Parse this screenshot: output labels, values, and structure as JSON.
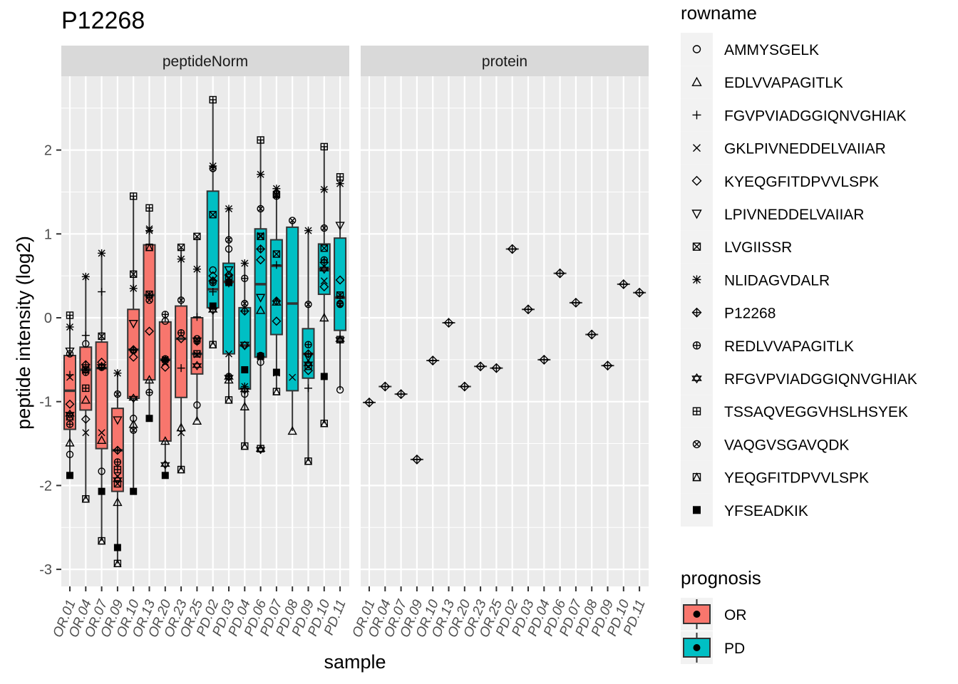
{
  "chart_data": {
    "type": "boxplot",
    "title": "P12268",
    "xlabel": "sample",
    "ylabel": "peptide intensity (log2)",
    "ylim": [
      -3.2,
      2.95
    ],
    "yticks": [
      2,
      1,
      0,
      -1,
      -2,
      -3
    ],
    "ytick_labels": [
      "2",
      "1",
      "0",
      "-1",
      "-2",
      "-3"
    ],
    "facets": [
      "peptideNorm",
      "protein"
    ],
    "samples": [
      "OR.01",
      "OR.04",
      "OR.07",
      "OR.09",
      "OR.10",
      "OR.13",
      "OR.20",
      "OR.23",
      "OR.25",
      "PD.02",
      "PD.03",
      "PD.04",
      "PD.06",
      "PD.07",
      "PD.08",
      "PD.09",
      "PD.10",
      "PD.11"
    ],
    "prognosis": [
      "OR",
      "OR",
      "OR",
      "OR",
      "OR",
      "OR",
      "OR",
      "OR",
      "OR",
      "PD",
      "PD",
      "PD",
      "PD",
      "PD",
      "PD",
      "PD",
      "PD",
      "PD"
    ],
    "box_stats": [
      {
        "sample": "OR.01",
        "lower": -1.88,
        "q1": -1.33,
        "median": -0.87,
        "q3": -0.45,
        "upper": 0.03
      },
      {
        "sample": "OR.04",
        "lower": -2.16,
        "q1": -1.1,
        "median": -0.62,
        "q3": -0.35,
        "upper": 0.49
      },
      {
        "sample": "OR.07",
        "lower": -2.66,
        "q1": -1.56,
        "median": -0.6,
        "q3": -0.29,
        "upper": 0.77
      },
      {
        "sample": "OR.09",
        "lower": -2.93,
        "q1": -2.07,
        "median": -1.58,
        "q3": -1.08,
        "upper": -0.66
      },
      {
        "sample": "OR.10",
        "lower": -2.07,
        "q1": -0.96,
        "median": -0.38,
        "q3": 0.1,
        "upper": 1.45
      },
      {
        "sample": "OR.13",
        "lower": -1.2,
        "q1": -0.74,
        "median": 0.27,
        "q3": 0.87,
        "upper": 1.31
      },
      {
        "sample": "OR.20",
        "lower": -1.88,
        "q1": -1.47,
        "median": -0.5,
        "q3": -0.05,
        "upper": 0.04
      },
      {
        "sample": "OR.23",
        "lower": -1.81,
        "q1": -0.95,
        "median": -0.25,
        "q3": 0.14,
        "upper": 0.84
      },
      {
        "sample": "OR.25",
        "lower": -1.23,
        "q1": -0.67,
        "median": -0.43,
        "q3": 0.0,
        "upper": 0.97
      },
      {
        "sample": "PD.02",
        "lower": -0.32,
        "q1": 0.12,
        "median": 0.34,
        "q3": 1.51,
        "upper": 2.6
      },
      {
        "sample": "PD.03",
        "lower": -0.97,
        "q1": -0.43,
        "median": 0.43,
        "q3": 0.65,
        "upper": 1.3
      },
      {
        "sample": "PD.04",
        "lower": -1.53,
        "q1": -0.85,
        "median": -0.33,
        "q3": 0.12,
        "upper": 0.65
      },
      {
        "sample": "PD.06",
        "lower": -1.57,
        "q1": -0.47,
        "median": 0.4,
        "q3": 1.06,
        "upper": 2.12
      },
      {
        "sample": "PD.07",
        "lower": -0.87,
        "q1": -0.2,
        "median": 0.62,
        "q3": 0.93,
        "upper": 1.54
      },
      {
        "sample": "PD.08",
        "lower": -1.35,
        "q1": -0.87,
        "median": 0.17,
        "q3": 1.08,
        "upper": 1.16
      },
      {
        "sample": "PD.09",
        "lower": -1.71,
        "q1": -0.72,
        "median": -0.43,
        "q3": -0.13,
        "upper": 1.04
      },
      {
        "sample": "PD.10",
        "lower": -1.26,
        "q1": 0.28,
        "median": 0.58,
        "q3": 0.88,
        "upper": 2.04
      },
      {
        "sample": "PD.11",
        "lower": -0.86,
        "q1": -0.15,
        "median": 0.24,
        "q3": 0.95,
        "upper": 1.68
      }
    ],
    "peptide_points": [
      {
        "sample": "OR.01",
        "points": [
          [
            0,
            -1.63
          ],
          [
            1,
            -1.49
          ],
          [
            3,
            -0.71
          ],
          [
            4,
            -1.03
          ],
          [
            7,
            -0.11
          ],
          [
            9,
            -1.27
          ],
          [
            10,
            -1.15
          ],
          [
            11,
            0.03
          ],
          [
            12,
            -0.43
          ],
          [
            13,
            -1.18
          ],
          [
            14,
            -1.88
          ],
          [
            2,
            -0.68
          ],
          [
            5,
            -0.4
          ]
        ]
      },
      {
        "sample": "OR.04",
        "points": [
          [
            0,
            -0.31
          ],
          [
            1,
            -0.98
          ],
          [
            2,
            -0.21
          ],
          [
            3,
            -1.37
          ],
          [
            4,
            -1.21
          ],
          [
            6,
            -0.62
          ],
          [
            7,
            0.49
          ],
          [
            8,
            -0.56
          ],
          [
            9,
            -0.65
          ],
          [
            11,
            -0.84
          ],
          [
            13,
            -2.16
          ]
        ]
      },
      {
        "sample": "OR.07",
        "points": [
          [
            0,
            -1.83
          ],
          [
            1,
            -1.46
          ],
          [
            2,
            0.31
          ],
          [
            3,
            -1.37
          ],
          [
            4,
            -0.53
          ],
          [
            6,
            -0.22
          ],
          [
            7,
            0.77
          ],
          [
            9,
            -0.59
          ],
          [
            10,
            -0.58
          ],
          [
            13,
            -2.66
          ],
          [
            14,
            -2.07
          ]
        ]
      },
      {
        "sample": "OR.09",
        "points": [
          [
            1,
            -2.2
          ],
          [
            3,
            -1.89
          ],
          [
            5,
            -1.22
          ],
          [
            6,
            -1.98
          ],
          [
            7,
            -0.66
          ],
          [
            8,
            -1.58
          ],
          [
            9,
            -1.72
          ],
          [
            10,
            -1.93
          ],
          [
            11,
            -1.81
          ],
          [
            12,
            -0.91
          ],
          [
            13,
            -2.93
          ],
          [
            14,
            -2.74
          ]
        ]
      },
      {
        "sample": "OR.10",
        "points": [
          [
            0,
            -1.2
          ],
          [
            1,
            -1.27
          ],
          [
            4,
            -0.47
          ],
          [
            5,
            -0.07
          ],
          [
            6,
            0.52
          ],
          [
            7,
            0.35
          ],
          [
            8,
            -0.38
          ],
          [
            9,
            -0.39
          ],
          [
            10,
            -0.96
          ],
          [
            11,
            1.45
          ],
          [
            12,
            -1.34
          ],
          [
            14,
            -2.07
          ]
        ]
      },
      {
        "sample": "OR.13",
        "points": [
          [
            1,
            -0.74
          ],
          [
            2,
            0.27
          ],
          [
            3,
            1.06
          ],
          [
            4,
            -0.16
          ],
          [
            6,
            0.28
          ],
          [
            7,
            1.04
          ],
          [
            9,
            -0.89
          ],
          [
            12,
            0.21
          ],
          [
            13,
            0.84
          ],
          [
            11,
            1.31
          ],
          [
            14,
            -1.2
          ]
        ]
      },
      {
        "sample": "OR.20",
        "points": [
          [
            0,
            -0.04
          ],
          [
            1,
            -1.47
          ],
          [
            3,
            -0.53
          ],
          [
            4,
            -0.59
          ],
          [
            7,
            -0.5
          ],
          [
            8,
            -0.51
          ],
          [
            9,
            0.04
          ],
          [
            10,
            -1.75
          ],
          [
            12,
            -0.49
          ],
          [
            14,
            -1.88
          ]
        ]
      },
      {
        "sample": "OR.23",
        "points": [
          [
            1,
            -1.31
          ],
          [
            2,
            -0.6
          ],
          [
            3,
            -1.37
          ],
          [
            4,
            -0.25
          ],
          [
            6,
            0.84
          ],
          [
            7,
            0.7
          ],
          [
            9,
            -0.18
          ],
          [
            12,
            0.21
          ],
          [
            13,
            -1.81
          ]
        ]
      },
      {
        "sample": "OR.25",
        "points": [
          [
            0,
            -1.04
          ],
          [
            1,
            -1.23
          ],
          [
            2,
            0.01
          ],
          [
            3,
            -0.44
          ],
          [
            5,
            -0.28
          ],
          [
            6,
            0.97
          ],
          [
            7,
            0.58
          ],
          [
            9,
            -0.28
          ],
          [
            10,
            -0.57
          ],
          [
            12,
            -0.25
          ],
          [
            11,
            -0.43
          ]
        ]
      },
      {
        "sample": "PD.02",
        "points": [
          [
            0,
            0.57
          ],
          [
            3,
            0.12
          ],
          [
            4,
            0.5
          ],
          [
            6,
            1.23
          ],
          [
            7,
            1.81
          ],
          [
            8,
            0.44
          ],
          [
            9,
            0.42
          ],
          [
            10,
            0.09
          ],
          [
            11,
            2.6
          ],
          [
            12,
            1.78
          ],
          [
            13,
            -0.32
          ],
          [
            14,
            0.14
          ],
          [
            2,
            0.31
          ]
        ]
      },
      {
        "sample": "PD.03",
        "points": [
          [
            0,
            0.82
          ],
          [
            1,
            -0.74
          ],
          [
            2,
            0.41
          ],
          [
            3,
            -0.43
          ],
          [
            4,
            0.51
          ],
          [
            5,
            0.57
          ],
          [
            6,
            0.48
          ],
          [
            7,
            1.3
          ],
          [
            9,
            -0.7
          ],
          [
            10,
            -0.71
          ],
          [
            12,
            0.93
          ],
          [
            13,
            -0.98
          ],
          [
            14,
            0.42
          ]
        ]
      },
      {
        "sample": "PD.04",
        "points": [
          [
            0,
            -0.91
          ],
          [
            1,
            -1.06
          ],
          [
            2,
            -0.82
          ],
          [
            3,
            -0.82
          ],
          [
            4,
            -0.33
          ],
          [
            5,
            -0.33
          ],
          [
            7,
            0.65
          ],
          [
            8,
            0.08
          ],
          [
            9,
            0.47
          ],
          [
            10,
            -0.86
          ],
          [
            12,
            0.17
          ],
          [
            13,
            -1.53
          ],
          [
            14,
            -0.62
          ]
        ]
      },
      {
        "sample": "PD.06",
        "points": [
          [
            0,
            -0.53
          ],
          [
            1,
            0.09
          ],
          [
            2,
            -0.46
          ],
          [
            3,
            0.98
          ],
          [
            4,
            0.69
          ],
          [
            5,
            0.24
          ],
          [
            6,
            0.97
          ],
          [
            7,
            1.71
          ],
          [
            8,
            0.82
          ],
          [
            9,
            -0.45
          ],
          [
            10,
            -1.57
          ],
          [
            11,
            2.12
          ],
          [
            12,
            1.3
          ],
          [
            13,
            -1.56
          ],
          [
            14,
            -0.46
          ]
        ]
      },
      {
        "sample": "PD.07",
        "points": [
          [
            0,
            1.48
          ],
          [
            1,
            0.19
          ],
          [
            2,
            0.63
          ],
          [
            3,
            -0.66
          ],
          [
            4,
            -0.04
          ],
          [
            6,
            0.76
          ],
          [
            7,
            1.54
          ],
          [
            8,
            0.2
          ],
          [
            9,
            1.45
          ],
          [
            11,
            1.47
          ],
          [
            12,
            1.47
          ],
          [
            13,
            -0.88
          ],
          [
            14,
            -0.65
          ]
        ]
      },
      {
        "sample": "PD.08",
        "points": [
          [
            1,
            -1.35
          ],
          [
            3,
            -0.71
          ],
          [
            12,
            1.16
          ]
        ]
      },
      {
        "sample": "PD.09",
        "points": [
          [
            2,
            -0.84
          ],
          [
            4,
            -0.63
          ],
          [
            6,
            -0.58
          ],
          [
            7,
            1.04
          ],
          [
            8,
            -0.43
          ],
          [
            9,
            -0.32
          ],
          [
            10,
            -0.55
          ],
          [
            12,
            0.16
          ],
          [
            13,
            -1.71
          ],
          [
            5,
            -0.47
          ]
        ]
      },
      {
        "sample": "PD.10",
        "points": [
          [
            1,
            0.0
          ],
          [
            4,
            0.37
          ],
          [
            6,
            0.83
          ],
          [
            7,
            1.53
          ],
          [
            8,
            0.66
          ],
          [
            9,
            0.69
          ],
          [
            10,
            0.58
          ],
          [
            11,
            2.04
          ],
          [
            12,
            1.07
          ],
          [
            13,
            -1.26
          ],
          [
            14,
            -0.7
          ],
          [
            3,
            0.44
          ]
        ]
      },
      {
        "sample": "PD.11",
        "points": [
          [
            0,
            -0.86
          ],
          [
            2,
            0.26
          ],
          [
            4,
            0.45
          ],
          [
            5,
            1.1
          ],
          [
            6,
            0.27
          ],
          [
            7,
            1.6
          ],
          [
            9,
            0.17
          ],
          [
            11,
            1.68
          ],
          [
            12,
            0.16
          ],
          [
            13,
            -0.26
          ],
          [
            10,
            -0.26
          ]
        ]
      }
    ],
    "protein_values": [
      -1.01,
      -0.82,
      -0.91,
      -1.69,
      -0.51,
      -0.06,
      -0.82,
      -0.58,
      -0.6,
      0.82,
      0.1,
      -0.5,
      0.53,
      0.18,
      -0.2,
      -0.57,
      0.4,
      0.3
    ],
    "legend_rowname": {
      "title": "rowname",
      "entries": [
        "AMMYSGELK",
        "EDLVVAPAGITLK",
        "FGVPVIADGGIQNVGHIAK",
        "GKLPIVNEDDELVAIIAR",
        "KYEQGFITDPVVLSPK",
        "LPIVNEDDELVAIIAR",
        "LVGIISSR",
        "NLIDAGVDALR",
        "P12268",
        "REDLVVAPAGITLK",
        "RFGVPVIADGGIQNVGHIAK",
        "TSSAQVEGGVHSLHSYEK",
        "VAQGVSGAVQDK",
        "YEQGFITDPVVLSPK",
        "YFSEADKIK"
      ],
      "shapes": [
        "circle",
        "triangle",
        "plus",
        "cross",
        "diamond",
        "triangle-down",
        "square-cross",
        "asterisk",
        "diamond-plus",
        "circle-plus",
        "star-david",
        "square-plus",
        "circle-cross",
        "square-triangle",
        "square-filled"
      ]
    },
    "legend_prognosis": {
      "title": "prognosis",
      "entries": [
        "OR",
        "PD"
      ],
      "colors": [
        "#F8766D",
        "#00BFC4"
      ]
    },
    "grid": true,
    "panel_background": "#EBEBEB",
    "strip_background": "#D9D9D9"
  }
}
